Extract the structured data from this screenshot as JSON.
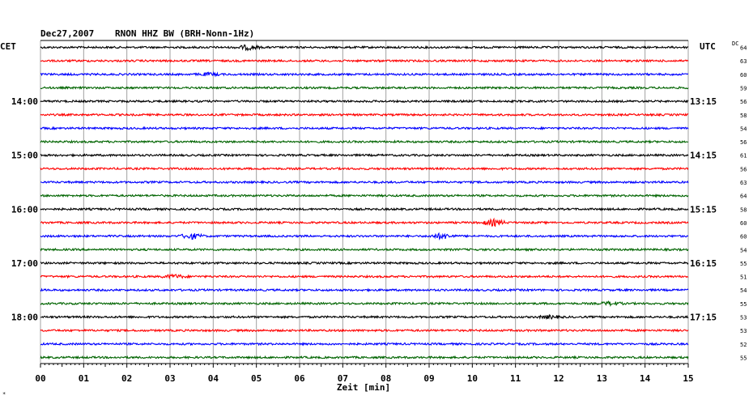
{
  "header": {
    "date": "Dec27,2007",
    "station": "RNON HHZ BW (BRH-Nonn-1Hz)",
    "left_zone": "CET",
    "right_zone": "UTC",
    "dc_label": "DC"
  },
  "x_axis": {
    "label": "Zeit [min]",
    "ticks": [
      "00",
      "01",
      "02",
      "03",
      "04",
      "05",
      "06",
      "07",
      "08",
      "09",
      "10",
      "11",
      "12",
      "13",
      "14",
      "15"
    ]
  },
  "corner_mark": "*",
  "colors": {
    "trace_cycle": [
      "#000000",
      "#ff0000",
      "#0000ff",
      "#006400"
    ],
    "grid": "#a0a0a0",
    "axis": "#000000"
  },
  "chart_data": {
    "type": "line",
    "title": "Dec27,2007   RNON HHZ BW (BRH-Nonn-1Hz)",
    "xlabel": "Zeit [min]",
    "xlim": [
      0,
      15
    ],
    "grid": true,
    "series_per_hour": 4,
    "cet_hour_labels": [
      {
        "row": 4,
        "label": "14:00"
      },
      {
        "row": 8,
        "label": "15:00"
      },
      {
        "row": 12,
        "label": "16:00"
      },
      {
        "row": 16,
        "label": "17:00"
      },
      {
        "row": 20,
        "label": "18:00"
      }
    ],
    "utc_labels": [
      {
        "row": 4,
        "label": "13:15"
      },
      {
        "row": 8,
        "label": "14:15"
      },
      {
        "row": 12,
        "label": "15:15"
      },
      {
        "row": 16,
        "label": "16:15"
      },
      {
        "row": 20,
        "label": "17:15"
      }
    ],
    "dc_offsets": [
      "64",
      "63",
      "60",
      "59",
      "56",
      "58",
      "54",
      "56",
      "61",
      "56",
      "63",
      "64",
      "58",
      "60",
      "60",
      "54",
      "55",
      "51",
      "54",
      "55",
      "53",
      "53",
      "52",
      "55"
    ],
    "events": [
      {
        "row": 0,
        "minute": 4.8,
        "amplitude": 2.5
      },
      {
        "row": 2,
        "minute": 3.9,
        "amplitude": 1.5
      },
      {
        "row": 13,
        "minute": 10.5,
        "amplitude": 3.5
      },
      {
        "row": 14,
        "minute": 3.5,
        "amplitude": 3.0
      },
      {
        "row": 14,
        "minute": 9.3,
        "amplitude": 3.0
      },
      {
        "row": 17,
        "minute": 3.1,
        "amplitude": 2.0
      },
      {
        "row": 19,
        "minute": 13.2,
        "amplitude": 1.8
      },
      {
        "row": 20,
        "minute": 11.8,
        "amplitude": 1.5
      }
    ]
  }
}
